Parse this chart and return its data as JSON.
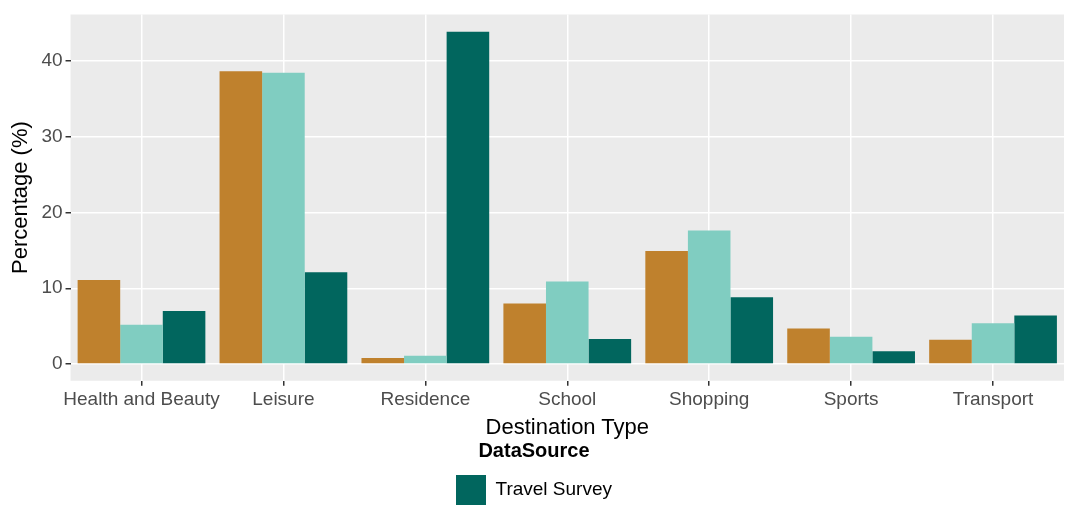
{
  "chart_data": {
    "type": "bar",
    "xlabel": "Destination Type",
    "ylabel": "Percentage (%)",
    "legend_title": "DataSource",
    "legend": "bottom",
    "grid": true,
    "categories": [
      "Health and Beauty",
      "Leisure",
      "Residence",
      "School",
      "Shopping",
      "Sports",
      "Transport"
    ],
    "series": [
      {
        "color": "#bf812d",
        "values": [
          11.1,
          38.6,
          0.8,
          8.0,
          14.9,
          4.7,
          3.2
        ]
      },
      {
        "color": "#80cdc1",
        "values": [
          5.2,
          38.4,
          1.1,
          10.9,
          17.6,
          3.6,
          5.4
        ]
      },
      {
        "name": "Travel Survey",
        "color": "#01665e",
        "values": [
          7.0,
          12.1,
          43.8,
          3.3,
          8.8,
          1.7,
          6.4
        ]
      }
    ],
    "ylim": [
      -2.2,
      46.1
    ],
    "yticks": [
      0,
      10,
      20,
      30,
      40
    ]
  }
}
